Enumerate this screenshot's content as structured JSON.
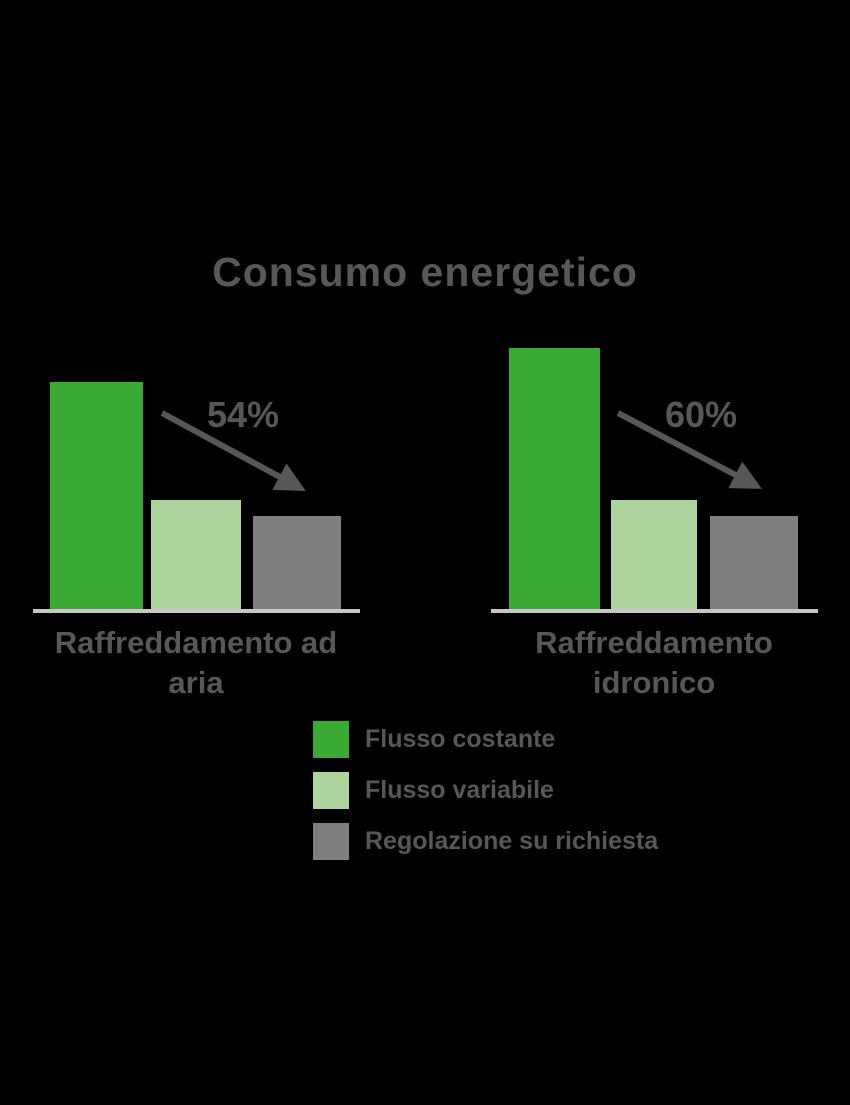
{
  "title": "Consumo energetico",
  "colors": {
    "background": "#000000",
    "text": "#575756",
    "arrow": "#575756",
    "baseline": "#c7c7c7",
    "flusso_costante": "#3aaa35",
    "flusso_variabile": "#aed49d",
    "regolazione_su_richiesta": "#7f7f7f"
  },
  "chart_data": {
    "type": "bar",
    "title": "Consumo energetico",
    "xlabel": "",
    "ylabel": "",
    "axes_visible": false,
    "legend_position": "bottom",
    "legend": [
      "Flusso costante",
      "Flusso variabile",
      "Regolazione su richiesta"
    ],
    "series_colors": [
      "#3aaa35",
      "#aed49d",
      "#7f7f7f"
    ],
    "groups": [
      {
        "category": "Raffreddamento ad aria",
        "annotation": "54%",
        "annotation_meaning": "reduction arrow from tallest bar downward",
        "relative_values": [
          100,
          48,
          41
        ]
      },
      {
        "category": "Raffreddamento idronico",
        "annotation": "60%",
        "annotation_meaning": "reduction arrow from tallest bar downward",
        "relative_values": [
          115,
          48,
          41
        ]
      }
    ]
  }
}
